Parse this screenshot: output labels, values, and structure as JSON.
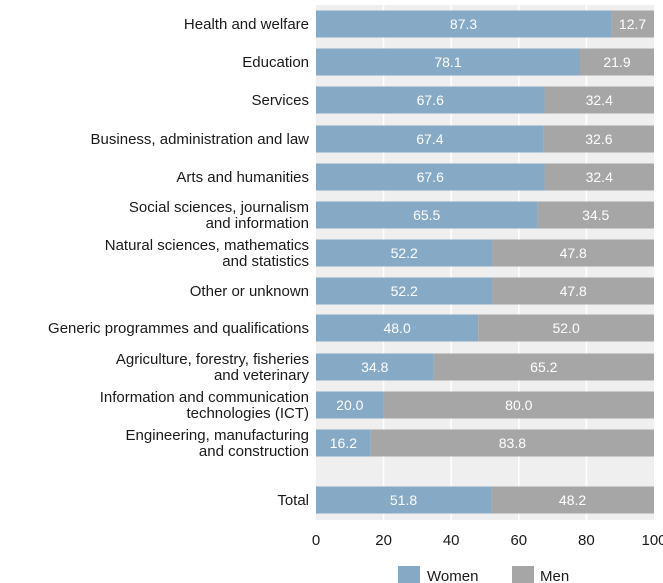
{
  "chart_data": {
    "type": "bar",
    "orientation": "horizontal",
    "stacked": true,
    "categories": [
      [
        "Health and welfare"
      ],
      [
        "Education"
      ],
      [
        "Services"
      ],
      [
        "Business, administration and law"
      ],
      [
        "Arts and humanities"
      ],
      [
        "Social sciences, journalism",
        "and information"
      ],
      [
        "Natural sciences, mathematics",
        "and statistics"
      ],
      [
        "Other or unknown"
      ],
      [
        "Generic programmes and qualifications"
      ],
      [
        "Agriculture, forestry, fisheries",
        "and veterinary"
      ],
      [
        "Information and communication",
        "technologies (ICT)"
      ],
      [
        "Engineering, manufacturing",
        "and construction"
      ],
      [
        "Total"
      ]
    ],
    "series": [
      {
        "name": "Women",
        "color": "#86a9c6",
        "values": [
          87.3,
          78.1,
          67.6,
          67.4,
          67.6,
          65.5,
          52.2,
          52.2,
          48.0,
          34.8,
          20.0,
          16.2,
          51.8
        ]
      },
      {
        "name": "Men",
        "color": "#a6a6a6",
        "values": [
          12.7,
          21.9,
          32.4,
          32.6,
          32.4,
          34.5,
          47.8,
          47.8,
          52.0,
          65.2,
          80.0,
          83.8,
          48.2
        ]
      }
    ],
    "xlim": [
      0,
      100
    ],
    "xticks": [
      "0",
      "20",
      "40",
      "60",
      "80",
      "100"
    ],
    "grid": true,
    "legend_position": "bottom-right",
    "value_labels": "inside"
  }
}
